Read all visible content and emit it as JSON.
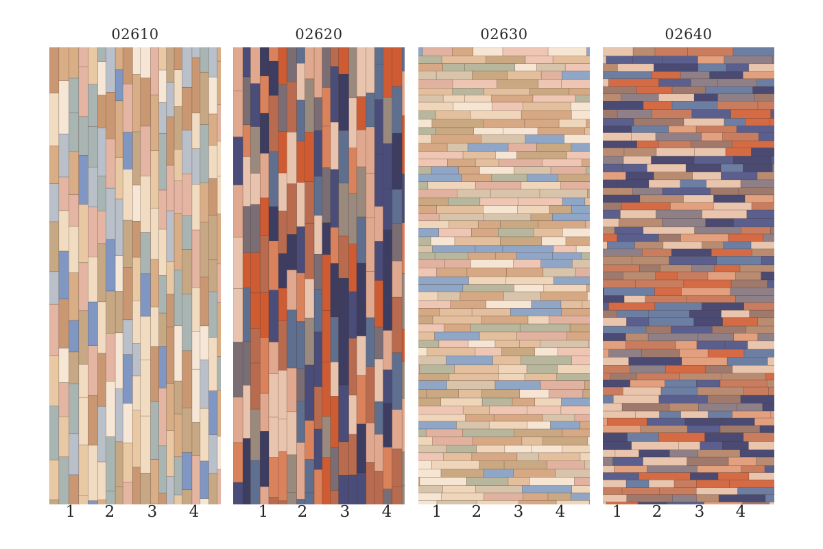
{
  "panels": [
    {
      "code": "02610",
      "pattern": "vertical",
      "columns": [
        "1",
        "2",
        "3",
        "4"
      ],
      "palette": [
        "#e9c9a4",
        "#d9ae86",
        "#f1dcc2",
        "#c99873",
        "#b9c0c9",
        "#7f97c2",
        "#e4b5a3",
        "#c7a884",
        "#f5e6d6",
        "#a9b5b2"
      ]
    },
    {
      "code": "02620",
      "pattern": "vertical",
      "columns": [
        "1",
        "2",
        "3",
        "4"
      ],
      "palette": [
        "#3d3d62",
        "#4a4d7a",
        "#b86b4e",
        "#d9825c",
        "#e0a88e",
        "#cf5b33",
        "#7a6d74",
        "#9a8a7e",
        "#e8c3ad",
        "#5e6f8f"
      ]
    },
    {
      "code": "02630",
      "pattern": "horizontal",
      "columns": [
        "1",
        "2",
        "3",
        "4"
      ],
      "palette": [
        "#efd6bb",
        "#e3bf9d",
        "#d6a984",
        "#f6e5d3",
        "#c9a882",
        "#e2b2a0",
        "#8fa6c7",
        "#b8b79d",
        "#eec6b3",
        "#d8c4ab"
      ]
    },
    {
      "code": "02640",
      "pattern": "horizontal",
      "columns": [
        "1",
        "2",
        "3",
        "4"
      ],
      "palette": [
        "#4b4a72",
        "#5a5f8d",
        "#c97d5e",
        "#e3a07f",
        "#d46b45",
        "#8f7f86",
        "#b98c72",
        "#e9c5ad",
        "#6d7ea3",
        "#a0796d"
      ]
    }
  ]
}
